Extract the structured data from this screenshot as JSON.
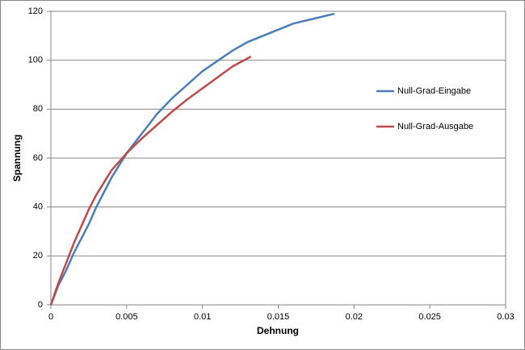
{
  "chart_data": {
    "type": "line",
    "x_label": "Dehnung",
    "y_label": "Spannung",
    "series": [
      {
        "name": "Null-Grad-Eingabe",
        "color": "#4a7ebb",
        "x": [
          0,
          0.0005,
          0.001,
          0.0015,
          0.002,
          0.0025,
          0.003,
          0.004,
          0.005,
          0.006,
          0.007,
          0.008,
          0.009,
          0.01,
          0.012,
          0.013,
          0.016,
          0.0187
        ],
        "values": [
          0,
          8,
          14,
          21,
          27,
          33,
          40,
          52,
          62,
          70,
          78,
          84.5,
          90,
          95.5,
          104,
          107.5,
          115,
          119
        ]
      },
      {
        "name": "Null-Grad-Ausgabe",
        "color": "#be4b48",
        "x": [
          0,
          0.0005,
          0.001,
          0.0015,
          0.002,
          0.0025,
          0.003,
          0.0035,
          0.004,
          0.005,
          0.006,
          0.007,
          0.008,
          0.009,
          0.01,
          0.011,
          0.012,
          0.0132
        ],
        "values": [
          0,
          9,
          17,
          25,
          32,
          39,
          45,
          50,
          55,
          62,
          68,
          73.5,
          79,
          84,
          88.5,
          93,
          97.5,
          101.5
        ]
      }
    ],
    "xlim": [
      0,
      0.03
    ],
    "xticks": [
      0,
      0.005,
      0.01,
      0.015,
      0.02,
      0.025,
      0.03
    ],
    "ylim": [
      0,
      120
    ],
    "yticks": [
      0,
      20,
      40,
      60,
      80,
      100,
      120
    ],
    "grid": true,
    "legend": "right"
  }
}
